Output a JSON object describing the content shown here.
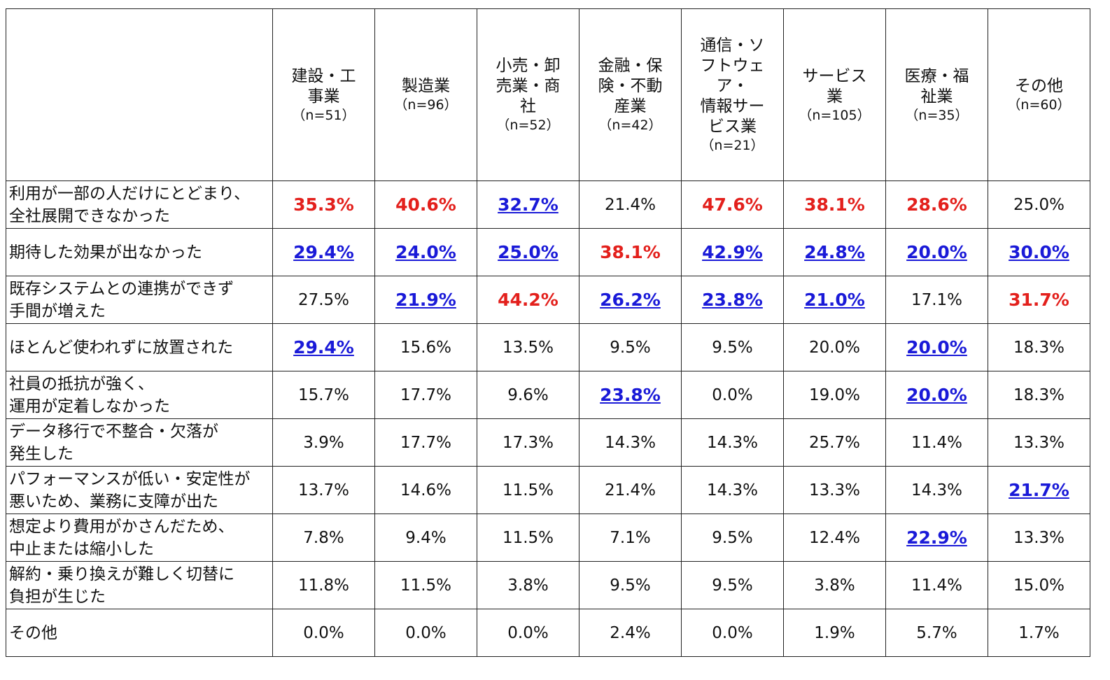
{
  "table": {
    "columns": [
      {
        "name": [
          "建設・工",
          "事業"
        ],
        "n": "（n=51）"
      },
      {
        "name": [
          "製造業"
        ],
        "n": "（n=96）"
      },
      {
        "name": [
          "小売・卸",
          "売業・商",
          "社"
        ],
        "n": "（n=52）"
      },
      {
        "name": [
          "金融・保",
          "険・不動",
          "産業"
        ],
        "n": "（n=42）"
      },
      {
        "name": [
          "通信・ソ",
          "フトウェ",
          "ア・",
          "情報サー",
          "ビス業"
        ],
        "n": "（n=21）"
      },
      {
        "name": [
          "サービス",
          "業"
        ],
        "n": "（n=105）"
      },
      {
        "name": [
          "医療・福",
          "祉業"
        ],
        "n": "（n=35）"
      },
      {
        "name": [
          "その他"
        ],
        "n": "（n=60）"
      }
    ],
    "rows": [
      {
        "label": [
          "利用が一部の人だけにとどまり、",
          "全社展開できなかった"
        ],
        "cells": [
          {
            "text": "35.3%",
            "style": "red"
          },
          {
            "text": "40.6%",
            "style": "red"
          },
          {
            "text": "32.7%",
            "style": "blue"
          },
          "21.4%",
          {
            "text": "47.6%",
            "style": "red"
          },
          {
            "text": "38.1%",
            "style": "red"
          },
          {
            "text": "28.6%",
            "style": "red"
          },
          "25.0%"
        ]
      },
      {
        "label": [
          "期待した効果が出なかった"
        ],
        "cells": [
          {
            "text": "29.4%",
            "style": "blue"
          },
          {
            "text": "24.0%",
            "style": "blue"
          },
          {
            "text": "25.0%",
            "style": "blue"
          },
          {
            "text": "38.1%",
            "style": "red"
          },
          {
            "text": "42.9%",
            "style": "blue"
          },
          {
            "text": "24.8%",
            "style": "blue"
          },
          {
            "text": "20.0%",
            "style": "blue"
          },
          {
            "text": "30.0%",
            "style": "blue"
          }
        ]
      },
      {
        "label": [
          "既存システムとの連携ができず",
          "手間が増えた"
        ],
        "cells": [
          "27.5%",
          {
            "text": "21.9%",
            "style": "blue"
          },
          {
            "text": "44.2%",
            "style": "red"
          },
          {
            "text": "26.2%",
            "style": "blue"
          },
          {
            "text": "23.8%",
            "style": "blue"
          },
          {
            "text": "21.0%",
            "style": "blue"
          },
          "17.1%",
          {
            "text": "31.7%",
            "style": "red"
          }
        ]
      },
      {
        "label": [
          "ほとんど使われずに放置された"
        ],
        "cells": [
          {
            "text": "29.4%",
            "style": "blue"
          },
          "15.6%",
          "13.5%",
          "9.5%",
          "9.5%",
          "20.0%",
          {
            "text": "20.0%",
            "style": "blue"
          },
          "18.3%"
        ]
      },
      {
        "label": [
          "社員の抵抗が強く、",
          "運用が定着しなかった"
        ],
        "cells": [
          "15.7%",
          "17.7%",
          "9.6%",
          {
            "text": "23.8%",
            "style": "blue"
          },
          "0.0%",
          "19.0%",
          {
            "text": "20.0%",
            "style": "blue"
          },
          "18.3%"
        ]
      },
      {
        "label": [
          "データ移行で不整合・欠落が",
          "発生した"
        ],
        "cells": [
          "3.9%",
          "17.7%",
          "17.3%",
          "14.3%",
          "14.3%",
          "25.7%",
          "11.4%",
          "13.3%"
        ]
      },
      {
        "label": [
          "パフォーマンスが低い・安定性が",
          "悪いため、業務に支障が出た"
        ],
        "cells": [
          "13.7%",
          "14.6%",
          "11.5%",
          "21.4%",
          "14.3%",
          "13.3%",
          "14.3%",
          {
            "text": "21.7%",
            "style": "blue"
          }
        ]
      },
      {
        "label": [
          "想定より費用がかさんだため、",
          "中止または縮小した"
        ],
        "cells": [
          "7.8%",
          "9.4%",
          "11.5%",
          "7.1%",
          "9.5%",
          "12.4%",
          {
            "text": "22.9%",
            "style": "blue"
          },
          "13.3%"
        ]
      },
      {
        "label": [
          "解約・乗り換えが難しく切替に",
          "負担が生じた"
        ],
        "cells": [
          "11.8%",
          "11.5%",
          "3.8%",
          "9.5%",
          "9.5%",
          "3.8%",
          "11.4%",
          "15.0%"
        ]
      },
      {
        "label": [
          "その他"
        ],
        "cells": [
          "0.0%",
          "0.0%",
          "0.0%",
          "2.4%",
          "0.0%",
          "1.9%",
          "5.7%",
          "1.7%"
        ]
      }
    ]
  }
}
